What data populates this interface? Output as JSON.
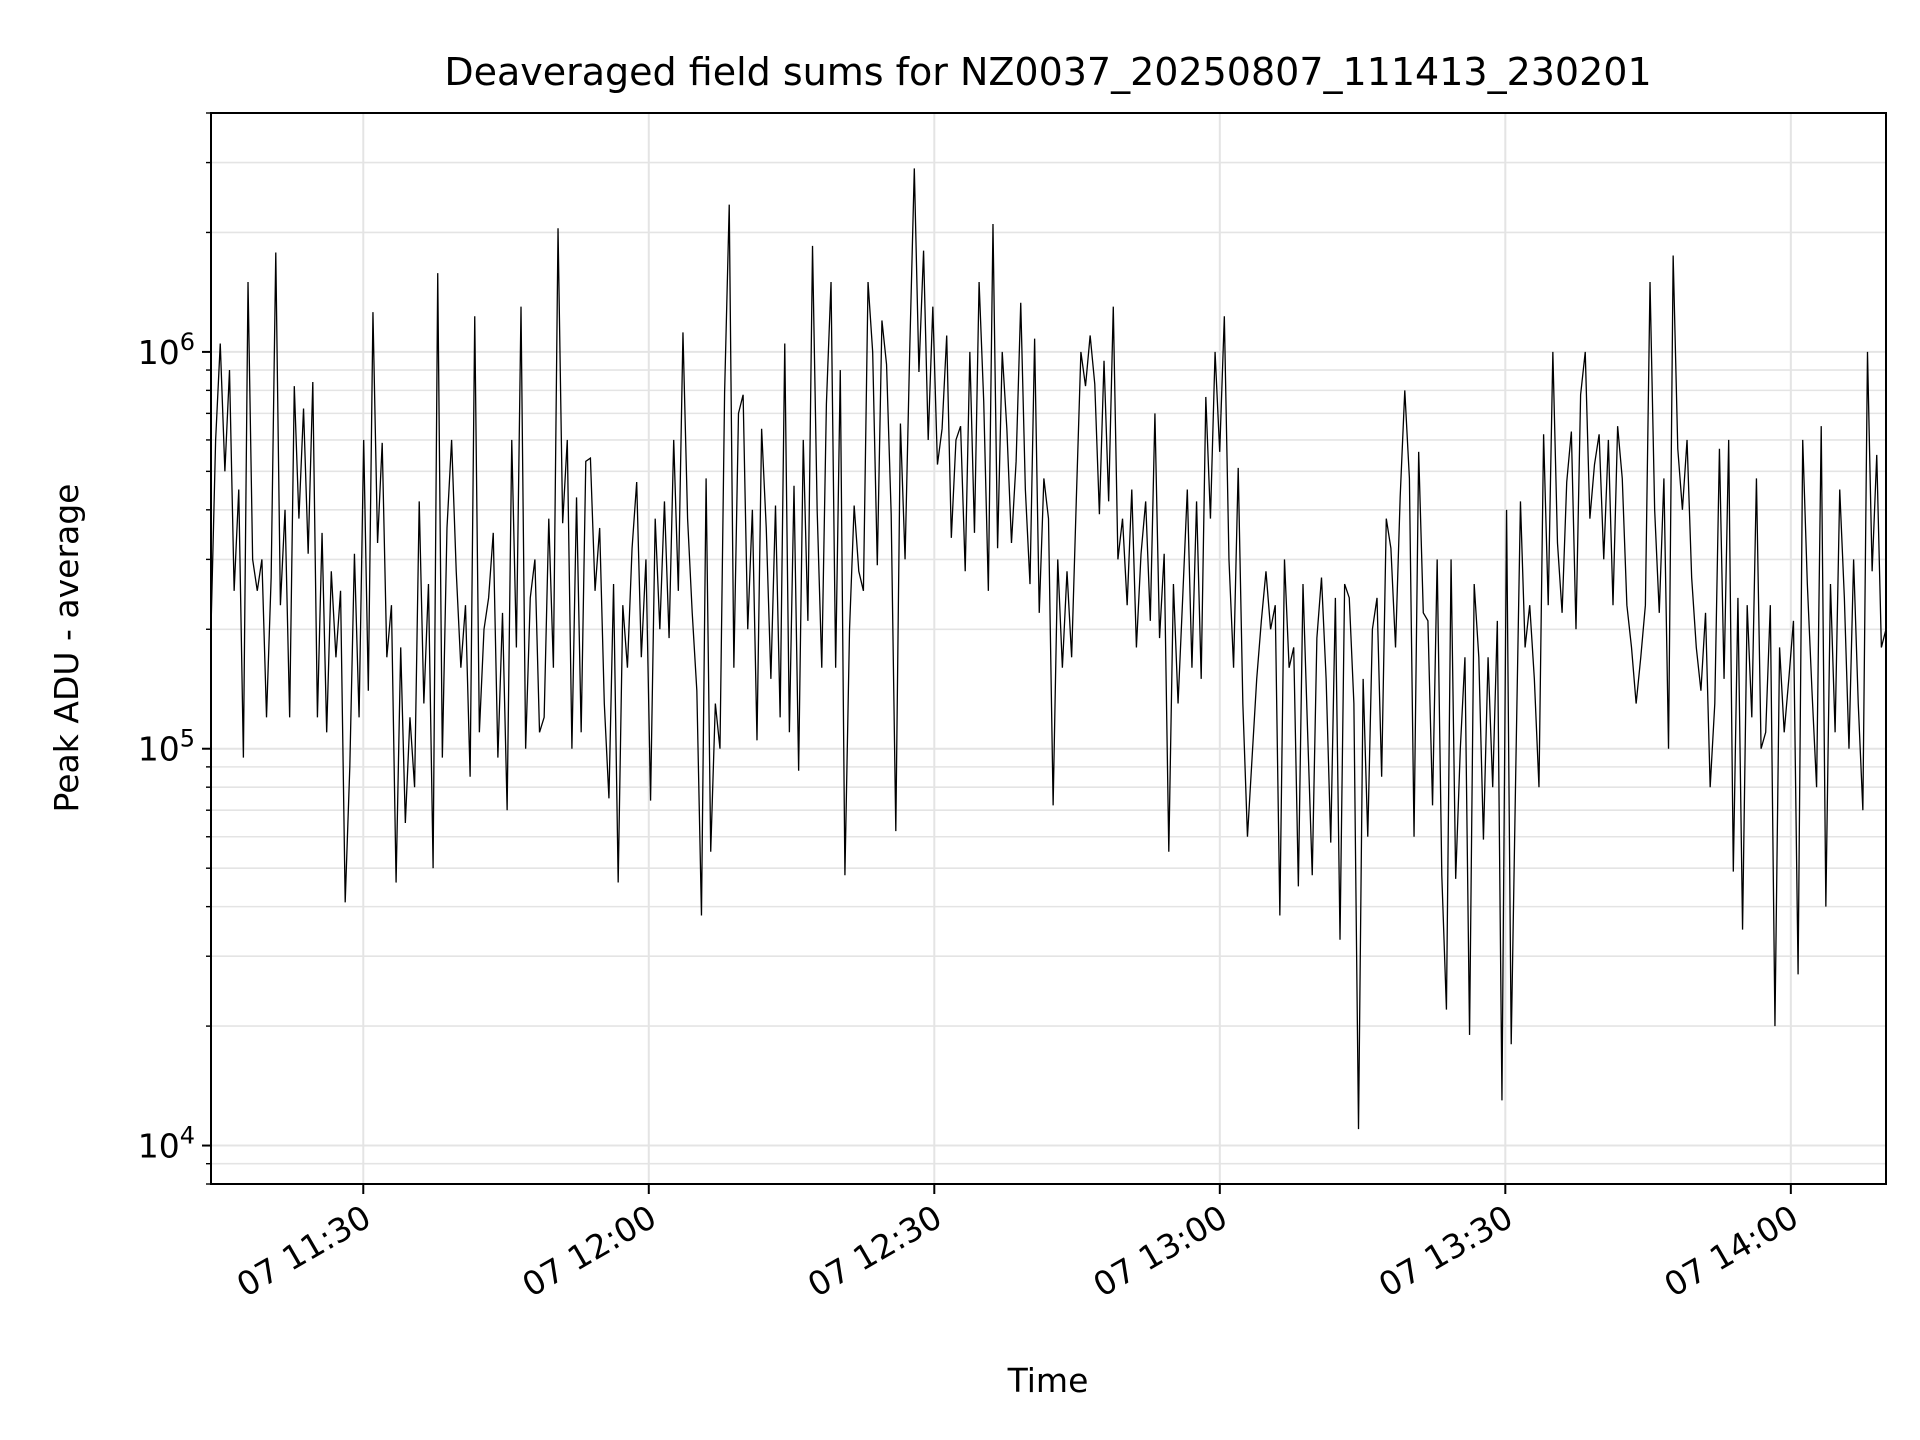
{
  "chart_data": {
    "type": "line",
    "title": "Deaveraged field sums for NZ0037_20250807_111413_230201",
    "xlabel": "Time",
    "ylabel": "Peak ADU - average",
    "yscale": "log",
    "ylim": [
      8000,
      4000000
    ],
    "xlim": [
      "07 11:14",
      "07 14:10"
    ],
    "grid": true,
    "legend": "none",
    "line_color": "#000000",
    "x_ticks": [
      {
        "time": "11:30",
        "label": "07 11:30"
      },
      {
        "time": "12:00",
        "label": "07 12:00"
      },
      {
        "time": "12:30",
        "label": "07 12:30"
      },
      {
        "time": "13:00",
        "label": "07 13:00"
      },
      {
        "time": "13:30",
        "label": "07 13:30"
      },
      {
        "time": "14:00",
        "label": "07 14:00"
      }
    ],
    "y_ticks": [
      {
        "value": 10000,
        "base": "10",
        "exp": "4"
      },
      {
        "value": 100000,
        "base": "10",
        "exp": "5"
      },
      {
        "value": 1000000,
        "base": "10",
        "exp": "6"
      }
    ],
    "series": [
      {
        "x_start": "11:14",
        "x_end": "14:10",
        "values": [
          200000,
          600000,
          1050000,
          500000,
          900000,
          250000,
          450000,
          95000,
          1500000,
          300000,
          250000,
          300000,
          120000,
          270000,
          1780000,
          230000,
          400000,
          120000,
          820000,
          380000,
          720000,
          310000,
          840000,
          120000,
          350000,
          110000,
          280000,
          170000,
          250000,
          41000,
          90000,
          310000,
          120000,
          600000,
          140000,
          1260000,
          330000,
          590000,
          170000,
          230000,
          46000,
          180000,
          65000,
          120000,
          80000,
          420000,
          130000,
          260000,
          50000,
          1580000,
          95000,
          360000,
          600000,
          280000,
          160000,
          230000,
          85000,
          1230000,
          110000,
          200000,
          240000,
          350000,
          95000,
          220000,
          70000,
          600000,
          180000,
          1300000,
          100000,
          240000,
          300000,
          110000,
          120000,
          380000,
          160000,
          2050000,
          370000,
          600000,
          100000,
          430000,
          110000,
          530000,
          540000,
          250000,
          360000,
          130000,
          75000,
          260000,
          46000,
          230000,
          160000,
          320000,
          470000,
          170000,
          300000,
          74000,
          380000,
          200000,
          420000,
          190000,
          600000,
          250000,
          1120000,
          380000,
          220000,
          140000,
          38000,
          480000,
          55000,
          130000,
          100000,
          790000,
          2350000,
          160000,
          700000,
          780000,
          200000,
          400000,
          105000,
          640000,
          360000,
          150000,
          410000,
          120000,
          1050000,
          110000,
          460000,
          88000,
          600000,
          210000,
          1850000,
          400000,
          160000,
          740000,
          1500000,
          160000,
          900000,
          48000,
          200000,
          410000,
          280000,
          250000,
          1500000,
          1000000,
          290000,
          1200000,
          930000,
          390000,
          62000,
          660000,
          300000,
          1000000,
          2900000,
          890000,
          1800000,
          600000,
          1300000,
          520000,
          640000,
          1100000,
          340000,
          600000,
          650000,
          280000,
          1000000,
          350000,
          1500000,
          750000,
          250000,
          2100000,
          320000,
          1000000,
          640000,
          330000,
          530000,
          1330000,
          450000,
          260000,
          1080000,
          220000,
          480000,
          380000,
          72000,
          300000,
          160000,
          280000,
          170000,
          420000,
          1000000,
          820000,
          1100000,
          830000,
          390000,
          950000,
          420000,
          1300000,
          300000,
          380000,
          230000,
          450000,
          180000,
          310000,
          420000,
          210000,
          700000,
          190000,
          310000,
          55000,
          260000,
          130000,
          240000,
          450000,
          160000,
          420000,
          150000,
          770000,
          380000,
          1000000,
          560000,
          1230000,
          300000,
          160000,
          510000,
          130000,
          60000,
          95000,
          150000,
          210000,
          280000,
          200000,
          230000,
          38000,
          300000,
          160000,
          180000,
          45000,
          260000,
          110000,
          48000,
          190000,
          270000,
          150000,
          58000,
          240000,
          33000,
          260000,
          240000,
          130000,
          11000,
          150000,
          60000,
          200000,
          240000,
          85000,
          380000,
          320000,
          180000,
          430000,
          800000,
          480000,
          60000,
          560000,
          220000,
          210000,
          72000,
          300000,
          48000,
          22000,
          300000,
          47000,
          100000,
          170000,
          19000,
          260000,
          170000,
          59000,
          170000,
          80000,
          210000,
          13000,
          400000,
          18000,
          90000,
          420000,
          180000,
          230000,
          150000,
          80000,
          620000,
          230000,
          1000000,
          330000,
          220000,
          470000,
          630000,
          200000,
          780000,
          1000000,
          380000,
          520000,
          620000,
          300000,
          600000,
          230000,
          650000,
          480000,
          230000,
          180000,
          130000,
          170000,
          230000,
          1500000,
          400000,
          220000,
          480000,
          100000,
          1750000,
          570000,
          400000,
          600000,
          270000,
          180000,
          140000,
          220000,
          80000,
          130000,
          570000,
          150000,
          600000,
          49000,
          240000,
          35000,
          230000,
          120000,
          480000,
          100000,
          110000,
          230000,
          20000,
          180000,
          110000,
          150000,
          210000,
          27000,
          600000,
          260000,
          140000,
          80000,
          650000,
          40000,
          260000,
          110000,
          450000,
          240000,
          100000,
          300000,
          130000,
          70000,
          1000000,
          280000,
          550000,
          180000,
          200000
        ]
      }
    ]
  }
}
